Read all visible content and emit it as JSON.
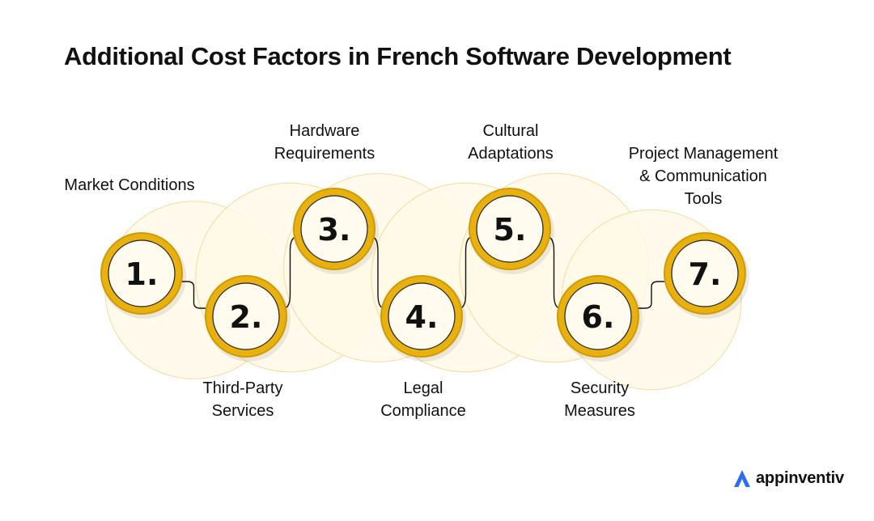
{
  "title": "Additional Cost Factors in French Software Development",
  "steps": [
    {
      "number": "1.",
      "label_lines": [
        "Market Conditions"
      ]
    },
    {
      "number": "2.",
      "label_lines": [
        "Third-Party",
        "Services"
      ]
    },
    {
      "number": "3.",
      "label_lines": [
        "Hardware",
        "Requirements"
      ]
    },
    {
      "number": "4.",
      "label_lines": [
        "Legal",
        "Compliance"
      ]
    },
    {
      "number": "5.",
      "label_lines": [
        "Cultural",
        "Adaptations"
      ]
    },
    {
      "number": "6.",
      "label_lines": [
        "Security",
        "Measures"
      ]
    },
    {
      "number": "7.",
      "label_lines": [
        "Project Management",
        "& Communication",
        "Tools"
      ]
    }
  ],
  "brand": {
    "name": "appinventiv",
    "logo_icon": "appinventiv-logo-icon"
  },
  "colors": {
    "ring": "#E8B10F",
    "ring_dark": "#CE9B05",
    "circle_fill": "#FFFCEF",
    "arc_fill": "#FFFAE8",
    "arc_stroke": "#F2D68A",
    "connector": "#111111",
    "logo_blue": "#2F6BF0"
  }
}
